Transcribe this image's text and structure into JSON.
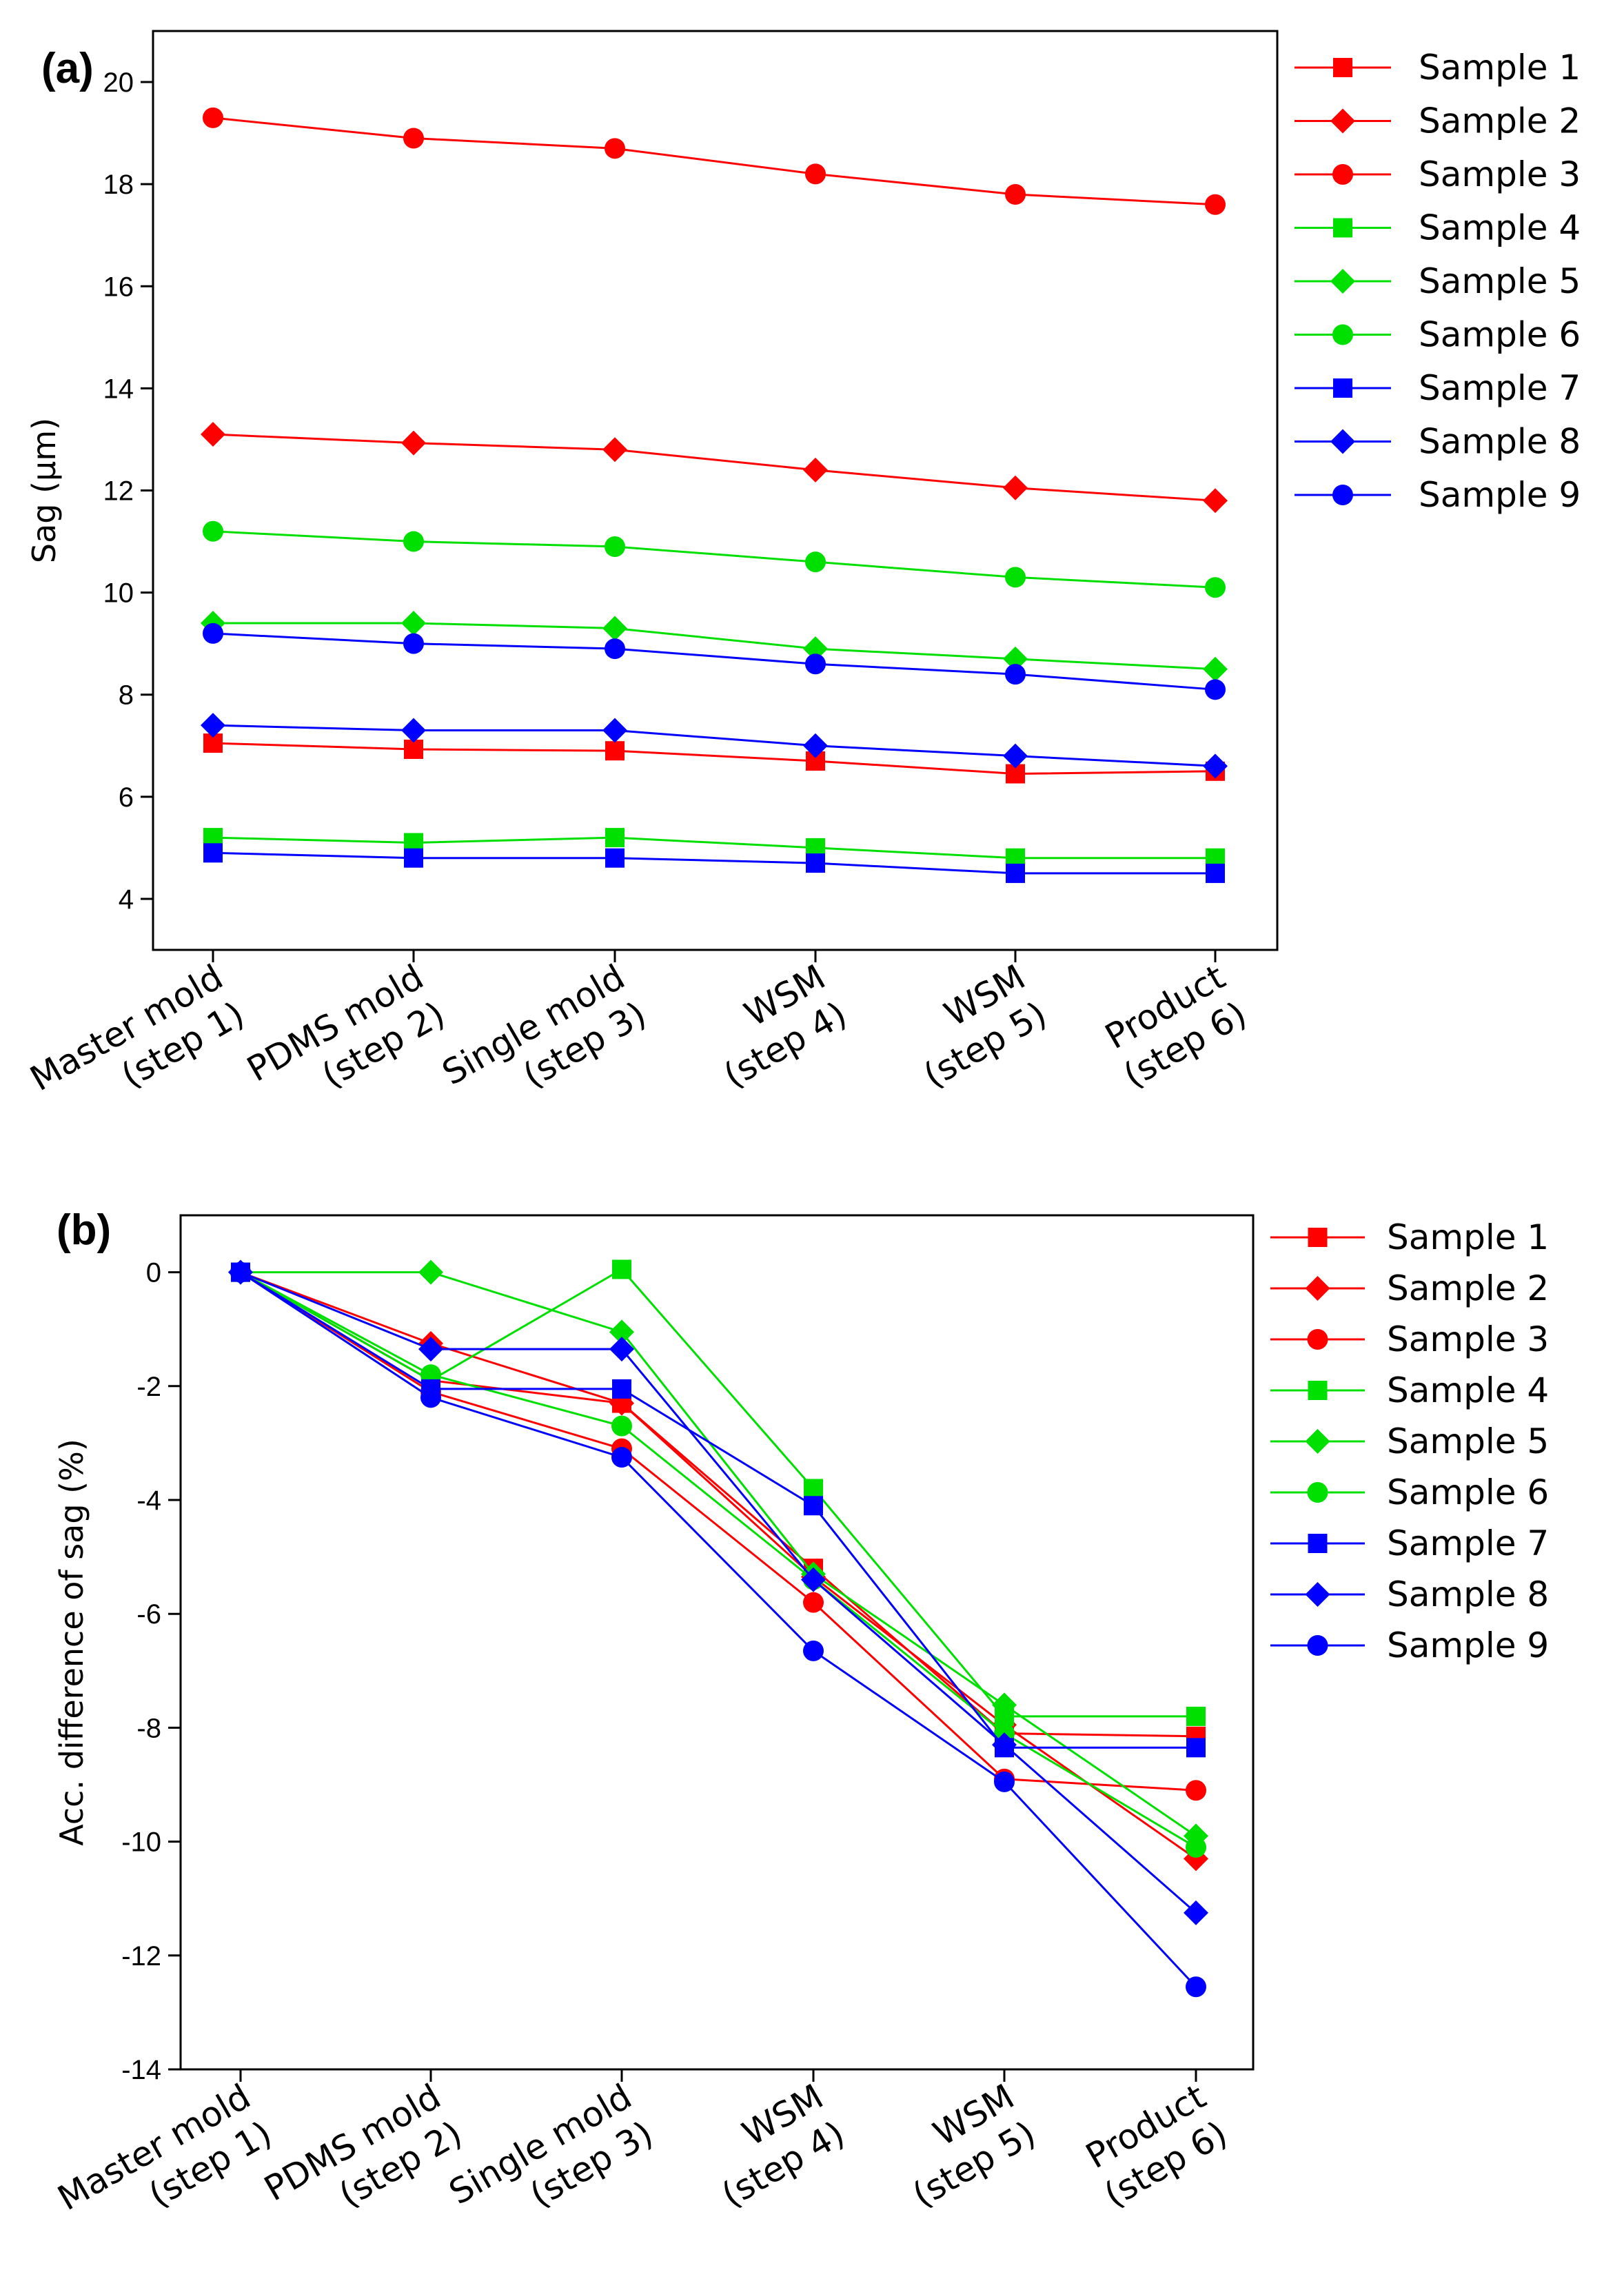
{
  "colors": {
    "red": "#ff0000",
    "green": "#00e000",
    "blue": "#0000ff"
  },
  "legend": [
    {
      "label": "Sample 1",
      "color": "red",
      "marker": "square"
    },
    {
      "label": "Sample 2",
      "color": "red",
      "marker": "diamond"
    },
    {
      "label": "Sample 3",
      "color": "red",
      "marker": "circle"
    },
    {
      "label": "Sample 4",
      "color": "green",
      "marker": "square"
    },
    {
      "label": "Sample 5",
      "color": "green",
      "marker": "diamond"
    },
    {
      "label": "Sample 6",
      "color": "green",
      "marker": "circle"
    },
    {
      "label": "Sample 7",
      "color": "blue",
      "marker": "square"
    },
    {
      "label": "Sample 8",
      "color": "blue",
      "marker": "diamond"
    },
    {
      "label": "Sample 9",
      "color": "blue",
      "marker": "circle"
    }
  ],
  "chart_data": [
    {
      "type": "line",
      "panel_label": "(a)",
      "ylabel": "Sag (μm)",
      "xlabel": "",
      "ylim": [
        3,
        21
      ],
      "yticks": [
        4,
        6,
        8,
        10,
        12,
        14,
        16,
        18,
        20
      ],
      "categories": [
        [
          "Master mold",
          "(step 1)"
        ],
        [
          "PDMS mold",
          "(step 2)"
        ],
        [
          "Single mold",
          "(step 3)"
        ],
        [
          "WSM",
          "(step 4)"
        ],
        [
          "WSM",
          "(step 5)"
        ],
        [
          "Product",
          "(step 6)"
        ]
      ],
      "series": [
        {
          "name": "Sample 1",
          "values": [
            7.05,
            6.93,
            6.9,
            6.7,
            6.45,
            6.5
          ]
        },
        {
          "name": "Sample 2",
          "values": [
            13.1,
            12.93,
            12.8,
            12.4,
            12.05,
            11.8
          ]
        },
        {
          "name": "Sample 3",
          "values": [
            19.3,
            18.9,
            18.7,
            18.2,
            17.8,
            17.6
          ]
        },
        {
          "name": "Sample 4",
          "values": [
            5.2,
            5.1,
            5.2,
            5.0,
            4.8,
            4.8
          ]
        },
        {
          "name": "Sample 5",
          "values": [
            9.4,
            9.4,
            9.3,
            8.9,
            8.7,
            8.5
          ]
        },
        {
          "name": "Sample 6",
          "values": [
            11.2,
            11.0,
            10.9,
            10.6,
            10.3,
            10.1
          ]
        },
        {
          "name": "Sample 7",
          "values": [
            4.9,
            4.8,
            4.8,
            4.7,
            4.5,
            4.5
          ]
        },
        {
          "name": "Sample 8",
          "values": [
            7.4,
            7.3,
            7.3,
            7.0,
            6.8,
            6.6
          ]
        },
        {
          "name": "Sample 9",
          "values": [
            9.2,
            9.0,
            8.9,
            8.6,
            8.4,
            8.1
          ]
        }
      ]
    },
    {
      "type": "line",
      "panel_label": "(b)",
      "ylabel": "Acc. difference of sag (%)",
      "xlabel": "",
      "ylim": [
        -14,
        1
      ],
      "yticks": [
        0,
        -2,
        -4,
        -6,
        -8,
        -10,
        -12,
        -14
      ],
      "categories": [
        [
          "Master mold",
          "(step 1)"
        ],
        [
          "PDMS mold",
          "(step 2)"
        ],
        [
          "Single mold",
          "(step 3)"
        ],
        [
          "WSM",
          "(step 4)"
        ],
        [
          "WSM",
          "(step 5)"
        ],
        [
          "Product",
          "(step 6)"
        ]
      ],
      "series": [
        {
          "name": "Sample 1",
          "values": [
            0,
            -1.9,
            -2.3,
            -5.2,
            -8.1,
            -8.15
          ]
        },
        {
          "name": "Sample 2",
          "values": [
            0,
            -1.25,
            -2.3,
            -5.35,
            -7.95,
            -10.3
          ]
        },
        {
          "name": "Sample 3",
          "values": [
            0,
            -2.1,
            -3.1,
            -5.8,
            -8.9,
            -9.1
          ]
        },
        {
          "name": "Sample 4",
          "values": [
            0,
            -1.9,
            0.05,
            -3.8,
            -7.8,
            -7.8
          ]
        },
        {
          "name": "Sample 5",
          "values": [
            0,
            0,
            -1.05,
            -5.3,
            -7.6,
            -9.9
          ]
        },
        {
          "name": "Sample 6",
          "values": [
            0,
            -1.8,
            -2.7,
            -5.4,
            -8.1,
            -10.1
          ]
        },
        {
          "name": "Sample 7",
          "values": [
            0,
            -2.05,
            -2.05,
            -4.1,
            -8.35,
            -8.35
          ]
        },
        {
          "name": "Sample 8",
          "values": [
            0,
            -1.35,
            -1.35,
            -5.4,
            -8.3,
            -11.25
          ]
        },
        {
          "name": "Sample 9",
          "values": [
            0,
            -2.2,
            -3.25,
            -6.65,
            -8.95,
            -12.55
          ]
        }
      ]
    }
  ]
}
